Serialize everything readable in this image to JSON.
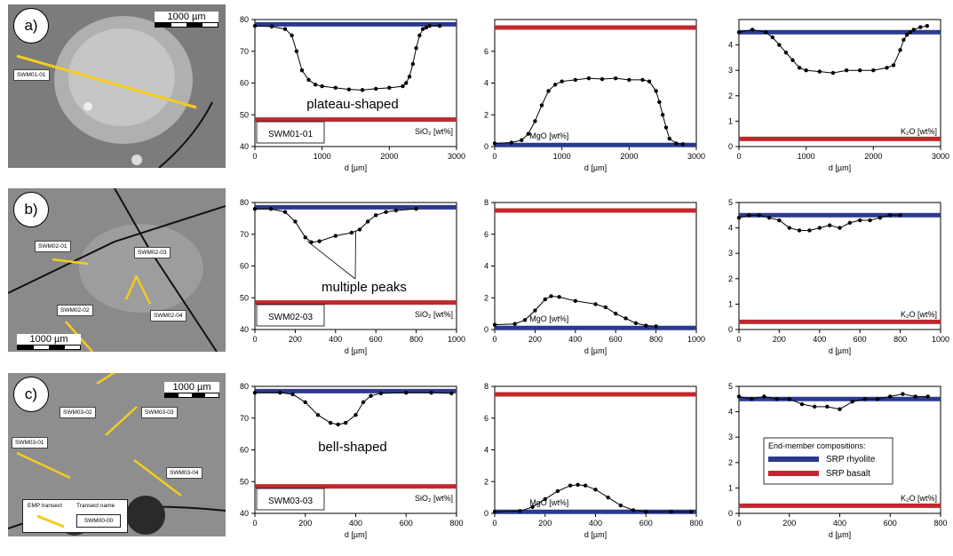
{
  "colors": {
    "rhyolite": "#2b3a8f",
    "basalt": "#c0282e",
    "data": "#000000"
  },
  "photos": [
    {
      "letter": "a)",
      "scale_label": "1000 µm",
      "labels": [
        {
          "text": "SWM01-01"
        }
      ]
    },
    {
      "letter": "b)",
      "scale_label": "1000 µm",
      "labels": [
        {
          "text": "SWM02-01"
        },
        {
          "text": "SWM02-03"
        },
        {
          "text": "SWM02-02"
        },
        {
          "text": "SWM02-04"
        }
      ]
    },
    {
      "letter": "c)",
      "scale_label": "1000 µm",
      "labels": [
        {
          "text": "SWM03-02"
        },
        {
          "text": "SWM03-03"
        },
        {
          "text": "SWM03-01"
        },
        {
          "text": "SWM03-04"
        }
      ],
      "legend": {
        "transect": "EMP transect",
        "name_title": "Transect name",
        "name_example": "SWM00-00"
      }
    }
  ],
  "legend": {
    "title": "End-member compositions:",
    "rhyolite": "SRP rhyolite",
    "basalt": "SRP basalt"
  },
  "chart_data": [
    {
      "type": "line",
      "row": 0,
      "col": 0,
      "xlabel": "d [µm]",
      "ylabel": "SiO₂ [wt%]",
      "xlim": [
        0,
        3000
      ],
      "ylim": [
        40,
        80
      ],
      "xticks": [
        "0",
        "1000",
        "2000",
        "3000"
      ],
      "yticks": [
        "40",
        "50",
        "60",
        "70",
        "80"
      ],
      "rhyolite": 78.5,
      "basalt": 48.5,
      "transect": "SWM01-01",
      "annotation": "plateau-shaped",
      "x": [
        0,
        250,
        450,
        550,
        620,
        700,
        800,
        900,
        1000,
        1200,
        1400,
        1600,
        1800,
        2000,
        2200,
        2250,
        2300,
        2350,
        2400,
        2450,
        2500,
        2550,
        2600,
        2750
      ],
      "y": [
        78,
        77.8,
        77,
        75,
        70,
        64,
        61,
        59.5,
        59,
        58.5,
        58,
        57.8,
        58.2,
        58.5,
        59,
        60,
        62,
        66,
        71,
        75,
        77,
        77.5,
        78,
        78
      ]
    },
    {
      "type": "line",
      "row": 0,
      "col": 1,
      "xlabel": "d [µm]",
      "ylabel": "MgO [wt%]",
      "xlim": [
        0,
        3000
      ],
      "ylim": [
        0,
        8
      ],
      "xticks": [
        "0",
        "1000",
        "2000",
        "3000"
      ],
      "yticks": [
        "0",
        "2",
        "4",
        "6"
      ],
      "rhyolite": 0.1,
      "basalt": 7.5,
      "x": [
        0,
        250,
        400,
        500,
        600,
        700,
        800,
        900,
        1000,
        1200,
        1400,
        1600,
        1800,
        2000,
        2200,
        2300,
        2400,
        2450,
        2500,
        2550,
        2600,
        2700,
        2800
      ],
      "y": [
        0.2,
        0.25,
        0.4,
        0.8,
        1.6,
        2.6,
        3.5,
        3.9,
        4.1,
        4.2,
        4.3,
        4.25,
        4.3,
        4.2,
        4.2,
        4.1,
        3.5,
        2.8,
        2.0,
        1.2,
        0.5,
        0.2,
        0.15
      ]
    },
    {
      "type": "line",
      "row": 0,
      "col": 2,
      "xlabel": "d [µm]",
      "ylabel": "K₂O [wt%]",
      "xlim": [
        0,
        3000
      ],
      "ylim": [
        0,
        5
      ],
      "xticks": [
        "0",
        "1000",
        "2000",
        "3000"
      ],
      "yticks": [
        "0",
        "1",
        "2",
        "3",
        "4"
      ],
      "rhyolite": 4.5,
      "basalt": 0.3,
      "x": [
        0,
        200,
        400,
        500,
        600,
        700,
        800,
        900,
        1000,
        1200,
        1400,
        1600,
        1800,
        2000,
        2200,
        2300,
        2400,
        2450,
        2500,
        2550,
        2600,
        2700,
        2800
      ],
      "y": [
        4.5,
        4.6,
        4.5,
        4.3,
        4.0,
        3.7,
        3.4,
        3.1,
        3.0,
        2.95,
        2.9,
        3.0,
        3.0,
        3.0,
        3.1,
        3.2,
        3.8,
        4.2,
        4.4,
        4.5,
        4.6,
        4.7,
        4.75
      ]
    },
    {
      "type": "line",
      "row": 1,
      "col": 0,
      "xlabel": "d [µm]",
      "ylabel": "SiO₂ [wt%]",
      "xlim": [
        0,
        1000
      ],
      "ylim": [
        40,
        80
      ],
      "xticks": [
        "0",
        "200",
        "400",
        "600",
        "800",
        "1000"
      ],
      "yticks": [
        "40",
        "50",
        "60",
        "70",
        "80"
      ],
      "rhyolite": 78.5,
      "basalt": 48.5,
      "transect": "SWM02-03",
      "annotation": "multiple peaks",
      "x": [
        0,
        80,
        150,
        200,
        250,
        280,
        320,
        400,
        480,
        520,
        560,
        600,
        650,
        700,
        800
      ],
      "y": [
        78,
        78,
        77,
        74,
        69,
        67.5,
        67.8,
        69.5,
        70.5,
        71.5,
        74,
        76,
        77,
        77.5,
        78
      ]
    },
    {
      "type": "line",
      "row": 1,
      "col": 1,
      "xlabel": "d [µm]",
      "ylabel": "MgO [wt%]",
      "xlim": [
        0,
        1000
      ],
      "ylim": [
        0,
        8
      ],
      "xticks": [
        "0",
        "200",
        "400",
        "600",
        "800",
        "1000"
      ],
      "yticks": [
        "0",
        "2",
        "4",
        "6",
        "8"
      ],
      "rhyolite": 0.1,
      "basalt": 7.5,
      "x": [
        0,
        100,
        150,
        200,
        250,
        280,
        320,
        400,
        500,
        550,
        600,
        650,
        700,
        750,
        800
      ],
      "y": [
        0.3,
        0.35,
        0.6,
        1.2,
        1.9,
        2.1,
        2.05,
        1.8,
        1.6,
        1.4,
        1.0,
        0.7,
        0.4,
        0.25,
        0.2
      ]
    },
    {
      "type": "line",
      "row": 1,
      "col": 2,
      "xlabel": "d [µm]",
      "ylabel": "K₂O [wt%]",
      "xlim": [
        0,
        1000
      ],
      "ylim": [
        0,
        5
      ],
      "xticks": [
        "0",
        "200",
        "400",
        "600",
        "800",
        "1000"
      ],
      "yticks": [
        "0",
        "1",
        "2",
        "3",
        "4",
        "5"
      ],
      "rhyolite": 4.5,
      "basalt": 0.3,
      "x": [
        0,
        50,
        100,
        150,
        200,
        250,
        300,
        350,
        400,
        450,
        500,
        550,
        600,
        650,
        700,
        750,
        800
      ],
      "y": [
        4.4,
        4.5,
        4.5,
        4.4,
        4.3,
        4.0,
        3.9,
        3.9,
        4.0,
        4.1,
        4.0,
        4.2,
        4.3,
        4.3,
        4.4,
        4.5,
        4.5
      ]
    },
    {
      "type": "line",
      "row": 2,
      "col": 0,
      "xlabel": "d [µm]",
      "ylabel": "SiO₂ [wt%]",
      "xlim": [
        0,
        800
      ],
      "ylim": [
        40,
        80
      ],
      "xticks": [
        "0",
        "200",
        "400",
        "600",
        "800"
      ],
      "yticks": [
        "40",
        "50",
        "60",
        "70",
        "80"
      ],
      "rhyolite": 78.5,
      "basalt": 48.5,
      "transect": "SWM03-03",
      "annotation": "bell-shaped",
      "x": [
        0,
        100,
        150,
        200,
        250,
        300,
        330,
        360,
        400,
        430,
        460,
        500,
        600,
        700,
        780
      ],
      "y": [
        78,
        78,
        77.5,
        75,
        71,
        68.5,
        68,
        68.5,
        71,
        75,
        77,
        77.8,
        78,
        78,
        77.8
      ]
    },
    {
      "type": "line",
      "row": 2,
      "col": 1,
      "xlabel": "d [µm]",
      "ylabel": "MgO [wt%]",
      "xlim": [
        0,
        800
      ],
      "ylim": [
        0,
        8
      ],
      "xticks": [
        "0",
        "200",
        "400",
        "600",
        "800"
      ],
      "yticks": [
        "0",
        "2",
        "4",
        "6",
        "8"
      ],
      "rhyolite": 0.1,
      "basalt": 7.5,
      "x": [
        0,
        100,
        150,
        200,
        250,
        300,
        330,
        360,
        400,
        450,
        500,
        550,
        600,
        700,
        780
      ],
      "y": [
        0.1,
        0.15,
        0.4,
        0.9,
        1.4,
        1.75,
        1.8,
        1.75,
        1.5,
        1.0,
        0.5,
        0.2,
        0.1,
        0.1,
        0.1
      ]
    },
    {
      "type": "line",
      "row": 2,
      "col": 2,
      "xlabel": "d [µm]",
      "ylabel": "K₂O [wt%]",
      "xlim": [
        0,
        800
      ],
      "ylim": [
        0,
        5
      ],
      "xticks": [
        "0",
        "200",
        "400",
        "600",
        "800"
      ],
      "yticks": [
        "0",
        "1",
        "2",
        "3",
        "4",
        "5"
      ],
      "rhyolite": 4.5,
      "basalt": 0.3,
      "x": [
        0,
        50,
        100,
        150,
        200,
        250,
        300,
        350,
        400,
        450,
        500,
        550,
        600,
        650,
        700,
        750
      ],
      "y": [
        4.6,
        4.5,
        4.6,
        4.5,
        4.5,
        4.3,
        4.2,
        4.2,
        4.1,
        4.4,
        4.5,
        4.5,
        4.6,
        4.7,
        4.6,
        4.6
      ]
    }
  ]
}
